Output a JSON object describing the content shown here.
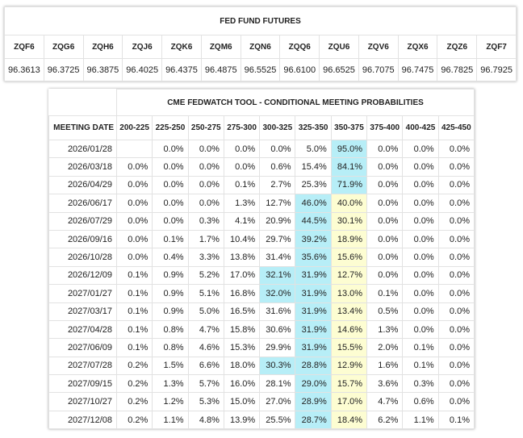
{
  "futures": {
    "title": "FED FUND FUTURES",
    "headers": [
      "ZQF6",
      "ZQG6",
      "ZQH6",
      "ZQJ6",
      "ZQK6",
      "ZQM6",
      "ZQN6",
      "ZQQ6",
      "ZQU6",
      "ZQV6",
      "ZQX6",
      "ZQZ6",
      "ZQF7"
    ],
    "values": [
      "96.3613",
      "96.3725",
      "96.3875",
      "96.4025",
      "96.4375",
      "96.4875",
      "96.5525",
      "96.6100",
      "96.6525",
      "96.7075",
      "96.7475",
      "96.7825",
      "96.7925"
    ]
  },
  "fedwatch": {
    "title": "CME FEDWATCH TOOL - CONDITIONAL MEETING PROBABILITIES",
    "headers": [
      "MEETING DATE",
      "200-225",
      "225-250",
      "250-275",
      "275-300",
      "300-325",
      "325-350",
      "350-375",
      "375-400",
      "400-425",
      "425-450"
    ],
    "rows": [
      [
        "2026/01/28",
        null,
        "0.0%",
        "0.0%",
        "0.0%",
        "0.0%",
        "5.0%",
        "95.0%",
        "0.0%",
        "0.0%",
        "0.0%"
      ],
      [
        "2026/03/18",
        "0.0%",
        "0.0%",
        "0.0%",
        "0.0%",
        "0.6%",
        "15.4%",
        "84.1%",
        "0.0%",
        "0.0%",
        "0.0%"
      ],
      [
        "2026/04/29",
        "0.0%",
        "0.0%",
        "0.0%",
        "0.1%",
        "2.7%",
        "25.3%",
        "71.9%",
        "0.0%",
        "0.0%",
        "0.0%"
      ],
      [
        "2026/06/17",
        "0.0%",
        "0.0%",
        "0.0%",
        "1.3%",
        "12.7%",
        "46.0%",
        "40.0%",
        "0.0%",
        "0.0%",
        "0.0%"
      ],
      [
        "2026/07/29",
        "0.0%",
        "0.0%",
        "0.3%",
        "4.1%",
        "20.9%",
        "44.5%",
        "30.1%",
        "0.0%",
        "0.0%",
        "0.0%"
      ],
      [
        "2026/09/16",
        "0.0%",
        "0.1%",
        "1.7%",
        "10.4%",
        "29.7%",
        "39.2%",
        "18.9%",
        "0.0%",
        "0.0%",
        "0.0%"
      ],
      [
        "2026/10/28",
        "0.0%",
        "0.4%",
        "3.3%",
        "13.8%",
        "31.4%",
        "35.6%",
        "15.6%",
        "0.0%",
        "0.0%",
        "0.0%"
      ],
      [
        "2026/12/09",
        "0.1%",
        "0.9%",
        "5.2%",
        "17.0%",
        "32.1%",
        "31.9%",
        "12.7%",
        "0.0%",
        "0.0%",
        "0.0%"
      ],
      [
        "2027/01/27",
        "0.1%",
        "0.9%",
        "5.1%",
        "16.8%",
        "32.0%",
        "31.9%",
        "13.0%",
        "0.1%",
        "0.0%",
        "0.0%"
      ],
      [
        "2027/03/17",
        "0.1%",
        "0.9%",
        "5.0%",
        "16.5%",
        "31.6%",
        "31.9%",
        "13.4%",
        "0.5%",
        "0.0%",
        "0.0%"
      ],
      [
        "2027/04/28",
        "0.1%",
        "0.8%",
        "4.7%",
        "15.8%",
        "30.6%",
        "31.9%",
        "14.6%",
        "1.3%",
        "0.0%",
        "0.0%"
      ],
      [
        "2027/06/09",
        "0.1%",
        "0.8%",
        "4.6%",
        "15.3%",
        "29.9%",
        "31.9%",
        "15.5%",
        "2.0%",
        "0.1%",
        "0.0%"
      ],
      [
        "2027/07/28",
        "0.2%",
        "1.5%",
        "6.6%",
        "18.0%",
        "30.3%",
        "28.8%",
        "12.9%",
        "1.6%",
        "0.1%",
        "0.0%"
      ],
      [
        "2027/09/15",
        "0.2%",
        "1.3%",
        "5.7%",
        "16.0%",
        "28.1%",
        "29.0%",
        "15.7%",
        "3.6%",
        "0.3%",
        "0.0%"
      ],
      [
        "2027/10/27",
        "0.2%",
        "1.2%",
        "5.3%",
        "15.0%",
        "27.0%",
        "28.9%",
        "17.0%",
        "4.7%",
        "0.6%",
        "0.0%"
      ],
      [
        "2027/12/08",
        "0.2%",
        "1.1%",
        "4.8%",
        "13.9%",
        "25.5%",
        "28.7%",
        "18.4%",
        "6.2%",
        "1.1%",
        "0.1%"
      ]
    ]
  }
}
